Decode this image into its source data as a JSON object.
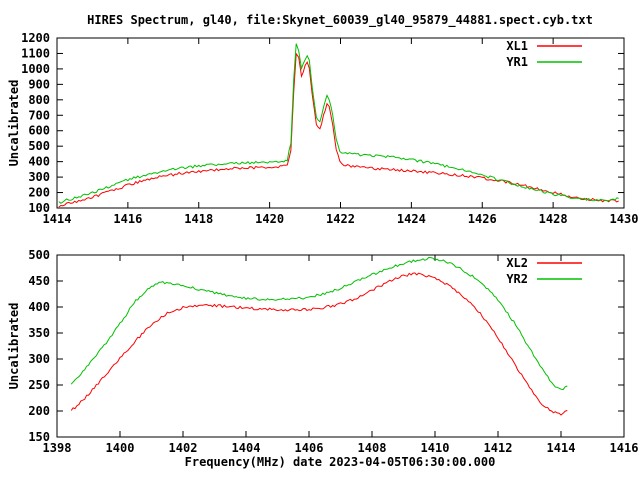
{
  "title": "HIRES Spectrum, gl40, file:Skynet_60039_gl40_95879_44881.spect.cyb.txt",
  "xlabel": "Frequency(MHz) date 2023-04-05T06:30:00.000",
  "colors": {
    "background": "#ffffff",
    "axis": "#000000",
    "text": "#000000",
    "red_series": "#ff0000",
    "green_series": "#00c000"
  },
  "chart_data": [
    {
      "type": "line",
      "ylabel": "Uncalibrated",
      "xlabel": "",
      "xlim": [
        1414,
        1430
      ],
      "ylim": [
        100,
        1200
      ],
      "xticks": [
        1414,
        1416,
        1418,
        1420,
        1422,
        1424,
        1426,
        1428,
        1430
      ],
      "yticks": [
        100,
        200,
        300,
        400,
        500,
        600,
        700,
        800,
        900,
        1000,
        1100,
        1200
      ],
      "grid": false,
      "legend_position": "top-right",
      "series": [
        {
          "name": "XL1",
          "color": "#ff0000",
          "points": [
            [
              1414.05,
              112
            ],
            [
              1414.5,
              138
            ],
            [
              1415,
              170
            ],
            [
              1415.5,
              208
            ],
            [
              1416,
              248
            ],
            [
              1416.5,
              282
            ],
            [
              1417,
              306
            ],
            [
              1417.5,
              324
            ],
            [
              1418,
              338
            ],
            [
              1418.5,
              348
            ],
            [
              1419,
              356
            ],
            [
              1419.5,
              361
            ],
            [
              1420,
              365
            ],
            [
              1420.3,
              368
            ],
            [
              1420.5,
              378
            ],
            [
              1420.6,
              470
            ],
            [
              1420.68,
              850
            ],
            [
              1420.75,
              1100
            ],
            [
              1420.82,
              1070
            ],
            [
              1420.9,
              955
            ],
            [
              1421.0,
              1015
            ],
            [
              1421.06,
              1040
            ],
            [
              1421.12,
              1000
            ],
            [
              1421.2,
              830
            ],
            [
              1421.32,
              645
            ],
            [
              1421.42,
              605
            ],
            [
              1421.52,
              700
            ],
            [
              1421.62,
              780
            ],
            [
              1421.68,
              755
            ],
            [
              1421.78,
              645
            ],
            [
              1421.88,
              480
            ],
            [
              1421.98,
              398
            ],
            [
              1422.1,
              378
            ],
            [
              1422.3,
              372
            ],
            [
              1422.5,
              366
            ],
            [
              1423,
              355
            ],
            [
              1423.5,
              347
            ],
            [
              1424,
              339
            ],
            [
              1424.5,
              331
            ],
            [
              1425,
              321
            ],
            [
              1425.5,
              309
            ],
            [
              1426,
              294
            ],
            [
              1426.5,
              276
            ],
            [
              1427,
              254
            ],
            [
              1427.5,
              228
            ],
            [
              1428,
              200
            ],
            [
              1428.5,
              174
            ],
            [
              1429,
              156
            ],
            [
              1429.4,
              148
            ],
            [
              1429.85,
              146
            ]
          ]
        },
        {
          "name": "YR1",
          "color": "#00c000",
          "points": [
            [
              1414.05,
              135
            ],
            [
              1414.5,
              165
            ],
            [
              1415,
              200
            ],
            [
              1415.5,
              240
            ],
            [
              1416,
              282
            ],
            [
              1416.5,
              315
            ],
            [
              1417,
              340
            ],
            [
              1417.5,
              358
            ],
            [
              1418,
              372
            ],
            [
              1418.5,
              381
            ],
            [
              1419,
              388
            ],
            [
              1419.5,
              393
            ],
            [
              1420,
              397
            ],
            [
              1420.3,
              401
            ],
            [
              1420.5,
              412
            ],
            [
              1420.6,
              520
            ],
            [
              1420.68,
              930
            ],
            [
              1420.75,
              1160
            ],
            [
              1420.82,
              1125
            ],
            [
              1420.9,
              1000
            ],
            [
              1421.0,
              1065
            ],
            [
              1421.06,
              1090
            ],
            [
              1421.12,
              1050
            ],
            [
              1421.2,
              875
            ],
            [
              1421.32,
              690
            ],
            [
              1421.42,
              655
            ],
            [
              1421.52,
              745
            ],
            [
              1421.62,
              830
            ],
            [
              1421.68,
              805
            ],
            [
              1421.78,
              700
            ],
            [
              1421.88,
              545
            ],
            [
              1421.98,
              462
            ],
            [
              1422.1,
              452
            ],
            [
              1422.3,
              449
            ],
            [
              1422.5,
              446
            ],
            [
              1423,
              439
            ],
            [
              1423.5,
              429
            ],
            [
              1424,
              413
            ],
            [
              1424.5,
              393
            ],
            [
              1425,
              369
            ],
            [
              1425.5,
              343
            ],
            [
              1426,
              313
            ],
            [
              1426.5,
              281
            ],
            [
              1427,
              249
            ],
            [
              1427.5,
              219
            ],
            [
              1428,
              190
            ],
            [
              1428.5,
              168
            ],
            [
              1429,
              154
            ],
            [
              1429.4,
              147
            ],
            [
              1429.65,
              150
            ],
            [
              1429.85,
              162
            ]
          ]
        }
      ]
    },
    {
      "type": "line",
      "ylabel": "Uncalibrated",
      "xlabel": "Frequency(MHz) date 2023-04-05T06:30:00.000",
      "xlim": [
        1398,
        1416
      ],
      "ylim": [
        150,
        500
      ],
      "xticks": [
        1398,
        1400,
        1402,
        1404,
        1406,
        1408,
        1410,
        1412,
        1414,
        1416
      ],
      "yticks": [
        150,
        200,
        250,
        300,
        350,
        400,
        450,
        500
      ],
      "grid": false,
      "legend_position": "top-right",
      "series": [
        {
          "name": "XL2",
          "color": "#ff0000",
          "points": [
            [
              1398.45,
              200
            ],
            [
              1399,
              232
            ],
            [
              1399.5,
              266
            ],
            [
              1400,
              301
            ],
            [
              1400.5,
              336
            ],
            [
              1401,
              366
            ],
            [
              1401.5,
              388
            ],
            [
              1402,
              399
            ],
            [
              1402.5,
              404
            ],
            [
              1403,
              403
            ],
            [
              1403.5,
              400
            ],
            [
              1404,
              398
            ],
            [
              1404.5,
              396
            ],
            [
              1405,
              395
            ],
            [
              1405.5,
              394
            ],
            [
              1406,
              395
            ],
            [
              1406.5,
              399
            ],
            [
              1407,
              406
            ],
            [
              1407.5,
              417
            ],
            [
              1408,
              432
            ],
            [
              1408.5,
              448
            ],
            [
              1409,
              460
            ],
            [
              1409.3,
              464
            ],
            [
              1409.6,
              463
            ],
            [
              1410,
              455
            ],
            [
              1410.5,
              439
            ],
            [
              1411,
              415
            ],
            [
              1411.5,
              383
            ],
            [
              1412,
              341
            ],
            [
              1412.5,
              293
            ],
            [
              1413,
              245
            ],
            [
              1413.4,
              213
            ],
            [
              1413.7,
              199
            ],
            [
              1414,
              194
            ],
            [
              1414.2,
              201
            ]
          ]
        },
        {
          "name": "YR2",
          "color": "#00c000",
          "points": [
            [
              1398.45,
              252
            ],
            [
              1399,
              288
            ],
            [
              1399.5,
              326
            ],
            [
              1400,
              368
            ],
            [
              1400.5,
              412
            ],
            [
              1401,
              441
            ],
            [
              1401.3,
              448
            ],
            [
              1401.6,
              446
            ],
            [
              1402,
              441
            ],
            [
              1402.5,
              434
            ],
            [
              1403,
              427
            ],
            [
              1403.5,
              421
            ],
            [
              1404,
              417
            ],
            [
              1404.5,
              415
            ],
            [
              1405,
              414
            ],
            [
              1405.5,
              415
            ],
            [
              1406,
              419
            ],
            [
              1406.5,
              426
            ],
            [
              1407,
              436
            ],
            [
              1407.5,
              449
            ],
            [
              1408,
              462
            ],
            [
              1408.5,
              474
            ],
            [
              1409,
              484
            ],
            [
              1409.5,
              491
            ],
            [
              1409.8,
              493
            ],
            [
              1410.2,
              490
            ],
            [
              1410.6,
              481
            ],
            [
              1411,
              467
            ],
            [
              1411.5,
              445
            ],
            [
              1412,
              413
            ],
            [
              1412.5,
              371
            ],
            [
              1413,
              321
            ],
            [
              1413.4,
              281
            ],
            [
              1413.7,
              254
            ],
            [
              1414,
              240
            ],
            [
              1414.2,
              248
            ]
          ]
        }
      ]
    }
  ]
}
